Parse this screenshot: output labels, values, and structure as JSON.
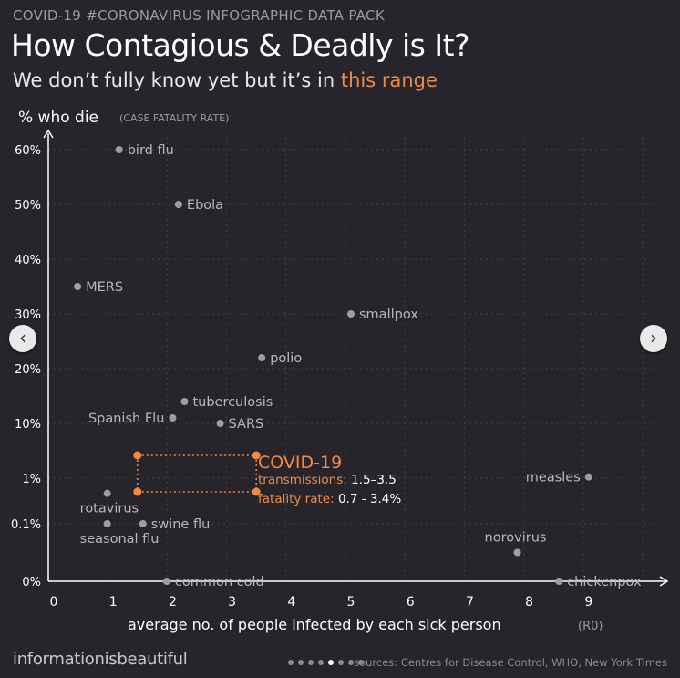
{
  "header": {
    "kicker": "COVID-19 #CORONAVIRUS INFOGRAPHIC DATA PACK",
    "title": "How Contagious  & Deadly is It?",
    "subtitle_prefix": "We don’t fully know yet but it’s in ",
    "subtitle_highlight": "this range"
  },
  "footer": {
    "brand": "informationisbeautiful",
    "sources": "sources: Centres for Disease Control, WHO, New York Times",
    "page_dots": 8,
    "active_dot": 4
  },
  "nav": {
    "prev_icon": "‹",
    "next_icon": "›"
  },
  "colors": {
    "background": "#27252b",
    "point": "#9e9e9e",
    "label": "#b8b8b8",
    "accent": "#f08a42"
  },
  "chart_data": {
    "type": "scatter",
    "ylabel": "% who die",
    "ylabel_note": "(CASE FATALITY RATE)",
    "xlabel": "average no. of people infected by each sick person",
    "xlabel_note": "(R0)",
    "xlim": [
      0,
      10
    ],
    "x_ticks": [
      "0",
      "1",
      "2",
      "3",
      "4",
      "5",
      "6",
      "7",
      "8",
      "9"
    ],
    "y_scale": "piecewise: 0%, 0.1%, 1%, then linear 10% to 60%",
    "y_ticks": [
      "0%",
      "0.1%",
      "1%",
      "10%",
      "20%",
      "30%",
      "40%",
      "50%",
      "60%"
    ],
    "grid": true,
    "points": [
      {
        "name": "bird flu",
        "x": 1.1,
        "y": 60,
        "label_side": "right"
      },
      {
        "name": "Ebola",
        "x": 2.1,
        "y": 50,
        "label_side": "right"
      },
      {
        "name": "MERS",
        "x": 0.4,
        "y": 35,
        "label_side": "right"
      },
      {
        "name": "smallpox",
        "x": 5.0,
        "y": 30,
        "label_side": "right"
      },
      {
        "name": "polio",
        "x": 3.5,
        "y": 22,
        "label_side": "right"
      },
      {
        "name": "tuberculosis",
        "x": 2.2,
        "y": 14,
        "label_side": "right"
      },
      {
        "name": "Spanish Flu",
        "x": 2.0,
        "y": 11,
        "label_side": "left"
      },
      {
        "name": "SARS",
        "x": 2.8,
        "y": 10,
        "label_side": "right"
      },
      {
        "name": "measles",
        "x": 9.0,
        "y": 1.2,
        "label_side": "left"
      },
      {
        "name": "rotavirus",
        "x": 0.9,
        "y": 0.7,
        "label_side": "below"
      },
      {
        "name": "seasonal flu",
        "x": 0.9,
        "y": 0.1,
        "label_side": "below"
      },
      {
        "name": "swine flu",
        "x": 1.5,
        "y": 0.1,
        "label_side": "right"
      },
      {
        "name": "norovirus",
        "x": 7.8,
        "y": 0.05,
        "label_side": "above"
      },
      {
        "name": "common cold",
        "x": 1.9,
        "y": 0.0,
        "label_side": "right"
      },
      {
        "name": "chickenpox",
        "x": 8.5,
        "y": 0.0,
        "label_side": "right"
      }
    ],
    "highlight": {
      "name": "COVID-19",
      "x_range": [
        1.5,
        3.5
      ],
      "y_range": [
        0.7,
        3.4
      ],
      "transmissions_label": "transmissions:",
      "transmissions_value": "1.5–3.5",
      "fatality_label": "fatality rate:",
      "fatality_value": "0.7 - 3.4%"
    }
  }
}
